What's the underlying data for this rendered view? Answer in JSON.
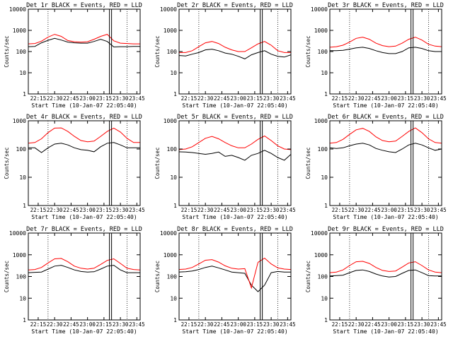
{
  "chart_data": [
    {
      "type": "line",
      "title": "Det 1r BLACK = Events, RED = LLD",
      "xlabel": "Start Time (10-Jan-07 22:05:40)",
      "ylabel": "Counts/sec",
      "y_scale": "log",
      "ylim": [
        1,
        10000
      ],
      "y_ticks": [
        "1",
        "10",
        "100",
        "1000",
        "10000"
      ],
      "x_ticks": [
        "22:15",
        "22:30",
        "22:45",
        "23:00",
        "23:15",
        "23:30",
        "23:45"
      ],
      "x": [
        "22:06",
        "22:12",
        "22:18",
        "22:24",
        "22:30",
        "22:36",
        "22:42",
        "22:48",
        "22:54",
        "23:00",
        "23:06",
        "23:12",
        "23:18",
        "23:24",
        "23:30",
        "23:36",
        "23:42",
        "23:48"
      ],
      "series": [
        {
          "name": "Events",
          "color": "#000000",
          "values": [
            170,
            175,
            260,
            340,
            420,
            350,
            280,
            260,
            250,
            250,
            300,
            380,
            300,
            165,
            170,
            170,
            175,
            175
          ]
        },
        {
          "name": "LLD",
          "color": "#ff0000",
          "values": [
            230,
            240,
            310,
            480,
            650,
            520,
            330,
            290,
            280,
            290,
            380,
            520,
            650,
            320,
            250,
            240,
            230,
            230
          ]
        }
      ]
    },
    {
      "type": "line",
      "title": "Det 2r BLACK = Events, RED = LLD",
      "xlabel": "Start Time (10-Jan-07 22:05:40)",
      "ylabel": "Counts/sec",
      "y_scale": "log",
      "ylim": [
        1,
        10000
      ],
      "y_ticks": [
        "1",
        "10",
        "100",
        "1000",
        "10000"
      ],
      "x_ticks": [
        "22:15",
        "22:30",
        "22:45",
        "23:00",
        "23:15",
        "23:30",
        "23:45"
      ],
      "x": [
        "22:06",
        "22:12",
        "22:18",
        "22:24",
        "22:30",
        "22:36",
        "22:42",
        "22:48",
        "22:54",
        "23:00",
        "23:06",
        "23:12",
        "23:18",
        "23:24",
        "23:30",
        "23:36",
        "23:42",
        "23:48"
      ],
      "series": [
        {
          "name": "Events",
          "color": "#000000",
          "values": [
            65,
            62,
            75,
            90,
            120,
            130,
            110,
            85,
            75,
            60,
            45,
            70,
            90,
            110,
            75,
            60,
            55,
            70
          ]
        },
        {
          "name": "LLD",
          "color": "#ff0000",
          "values": [
            90,
            90,
            110,
            170,
            260,
            300,
            240,
            160,
            120,
            100,
            100,
            150,
            230,
            300,
            200,
            110,
            90,
            90
          ]
        }
      ]
    },
    {
      "type": "line",
      "title": "Det 3r BLACK = Events, RED = LLD",
      "xlabel": "Start Time (10-Jan-07 22:05:40)",
      "ylabel": "Counts/sec",
      "y_scale": "log",
      "ylim": [
        1,
        10000
      ],
      "y_ticks": [
        "1",
        "10",
        "100",
        "1000",
        "10000"
      ],
      "x_ticks": [
        "22:15",
        "22:30",
        "22:45",
        "23:00",
        "23:15",
        "23:30",
        "23:45"
      ],
      "x": [
        "22:06",
        "22:12",
        "22:18",
        "22:24",
        "22:30",
        "22:36",
        "22:42",
        "22:48",
        "22:54",
        "23:00",
        "23:06",
        "23:12",
        "23:18",
        "23:24",
        "23:30",
        "23:36",
        "23:42",
        "23:48"
      ],
      "series": [
        {
          "name": "Events",
          "color": "#000000",
          "values": [
            110,
            110,
            115,
            130,
            150,
            160,
            140,
            110,
            90,
            80,
            80,
            100,
            150,
            160,
            140,
            110,
            100,
            100
          ]
        },
        {
          "name": "LLD",
          "color": "#ff0000",
          "values": [
            160,
            170,
            200,
            280,
            420,
            480,
            380,
            250,
            190,
            170,
            180,
            250,
            380,
            480,
            350,
            220,
            180,
            170
          ]
        }
      ]
    },
    {
      "type": "line",
      "title": "Det 4r BLACK = Events, RED = LLD",
      "xlabel": "Start Time (10-Jan-07 22:05:40)",
      "ylabel": "Counts/sec",
      "y_scale": "log",
      "ylim": [
        1,
        1000
      ],
      "y_ticks": [
        "1",
        "10",
        "100",
        "1000"
      ],
      "x_ticks": [
        "22:15",
        "22:30",
        "22:45",
        "23:00",
        "23:15",
        "23:30",
        "23:45"
      ],
      "x": [
        "22:06",
        "22:12",
        "22:18",
        "22:24",
        "22:30",
        "22:36",
        "22:42",
        "22:48",
        "22:54",
        "23:00",
        "23:06",
        "23:12",
        "23:18",
        "23:24",
        "23:30",
        "23:36",
        "23:42",
        "23:48"
      ],
      "series": [
        {
          "name": "Events",
          "color": "#000000",
          "values": [
            110,
            110,
            75,
            110,
            150,
            160,
            140,
            110,
            95,
            90,
            80,
            120,
            160,
            170,
            140,
            110,
            110,
            110
          ]
        },
        {
          "name": "LLD",
          "color": "#ff0000",
          "values": [
            160,
            170,
            230,
            380,
            550,
            560,
            420,
            280,
            200,
            180,
            190,
            280,
            420,
            550,
            400,
            240,
            170,
            170
          ]
        }
      ]
    },
    {
      "type": "line",
      "title": "Det 5r BLACK = Events, RED = LLD",
      "xlabel": "Start Time (10-Jan-07 22:05:40)",
      "ylabel": "Counts/sec",
      "y_scale": "log",
      "ylim": [
        1,
        1000
      ],
      "y_ticks": [
        "1",
        "10",
        "100",
        "1000"
      ],
      "x_ticks": [
        "22:15",
        "22:30",
        "22:45",
        "23:00",
        "23:15",
        "23:30",
        "23:45"
      ],
      "x": [
        "22:06",
        "22:12",
        "22:18",
        "22:24",
        "22:30",
        "22:36",
        "22:42",
        "22:48",
        "22:54",
        "23:00",
        "23:06",
        "23:12",
        "23:18",
        "23:24",
        "23:30",
        "23:36",
        "23:42",
        "23:48"
      ],
      "series": [
        {
          "name": "Events",
          "color": "#000000",
          "values": [
            80,
            78,
            75,
            70,
            65,
            70,
            78,
            55,
            60,
            50,
            40,
            60,
            70,
            90,
            70,
            50,
            40,
            65
          ]
        },
        {
          "name": "LLD",
          "color": "#ff0000",
          "values": [
            95,
            100,
            120,
            170,
            240,
            280,
            230,
            170,
            130,
            110,
            110,
            150,
            220,
            290,
            200,
            130,
            100,
            95
          ]
        }
      ]
    },
    {
      "type": "line",
      "title": "Det 6r BLACK = Events, RED = LLD",
      "xlabel": "Start Time (10-Jan-07 22:05:40)",
      "ylabel": "Counts/sec",
      "y_scale": "log",
      "ylim": [
        1,
        1000
      ],
      "y_ticks": [
        "1",
        "10",
        "100",
        "1000"
      ],
      "x_ticks": [
        "22:15",
        "22:30",
        "22:45",
        "23:00",
        "23:15",
        "23:30",
        "23:45"
      ],
      "x": [
        "22:06",
        "22:12",
        "22:18",
        "22:24",
        "22:30",
        "22:36",
        "22:42",
        "22:48",
        "22:54",
        "23:00",
        "23:06",
        "23:12",
        "23:18",
        "23:24",
        "23:30",
        "23:36",
        "23:42",
        "23:48"
      ],
      "series": [
        {
          "name": "Events",
          "color": "#000000",
          "values": [
            110,
            105,
            110,
            130,
            150,
            160,
            140,
            105,
            90,
            80,
            75,
            100,
            140,
            160,
            140,
            110,
            90,
            100
          ]
        },
        {
          "name": "LLD",
          "color": "#ff0000",
          "values": [
            160,
            170,
            220,
            330,
            480,
            540,
            420,
            270,
            200,
            180,
            190,
            280,
            420,
            560,
            380,
            230,
            170,
            160
          ]
        }
      ]
    },
    {
      "type": "line",
      "title": "Det 7r BLACK = Events, RED = LLD",
      "xlabel": "Start Time (10-Jan-07 22:05:40)",
      "ylabel": "Counts/sec",
      "y_scale": "log",
      "ylim": [
        1,
        10000
      ],
      "y_ticks": [
        "1",
        "10",
        "100",
        "1000",
        "10000"
      ],
      "x_ticks": [
        "22:15",
        "22:30",
        "22:45",
        "23:00",
        "23:15",
        "23:30",
        "23:45"
      ],
      "x": [
        "22:06",
        "22:12",
        "22:18",
        "22:24",
        "22:30",
        "22:36",
        "22:42",
        "22:48",
        "22:54",
        "23:00",
        "23:06",
        "23:12",
        "23:18",
        "23:24",
        "23:30",
        "23:36",
        "23:42",
        "23:48"
      ],
      "series": [
        {
          "name": "Events",
          "color": "#000000",
          "values": [
            150,
            155,
            160,
            220,
            300,
            330,
            260,
            200,
            170,
            160,
            165,
            220,
            300,
            330,
            200,
            150,
            150,
            150
          ]
        },
        {
          "name": "LLD",
          "color": "#ff0000",
          "values": [
            200,
            210,
            260,
            420,
            650,
            680,
            480,
            300,
            240,
            220,
            240,
            360,
            550,
            650,
            400,
            240,
            210,
            200
          ]
        }
      ]
    },
    {
      "type": "line",
      "title": "Det 8r BLACK = Events, RED = LLD",
      "xlabel": "Start Time (10-Jan-07 22:05:40)",
      "ylabel": "Counts/sec",
      "y_scale": "log",
      "ylim": [
        1,
        10000
      ],
      "y_ticks": [
        "1",
        "10",
        "100",
        "1000",
        "10000"
      ],
      "x_ticks": [
        "22:15",
        "22:30",
        "22:45",
        "23:00",
        "23:15",
        "23:30",
        "23:45"
      ],
      "x": [
        "22:06",
        "22:12",
        "22:18",
        "22:24",
        "22:30",
        "22:36",
        "22:42",
        "22:48",
        "22:54",
        "23:00",
        "23:06",
        "23:12",
        "23:18",
        "23:24",
        "23:30",
        "23:36",
        "23:42",
        "23:48"
      ],
      "series": [
        {
          "name": "Events",
          "color": "#000000",
          "values": [
            160,
            165,
            180,
            210,
            260,
            300,
            250,
            200,
            160,
            150,
            140,
            40,
            20,
            40,
            150,
            170,
            160,
            160
          ]
        },
        {
          "name": "LLD",
          "color": "#ff0000",
          "values": [
            210,
            220,
            260,
            380,
            560,
            600,
            460,
            310,
            240,
            220,
            230,
            30,
            450,
            700,
            380,
            250,
            220,
            210
          ]
        }
      ]
    },
    {
      "type": "line",
      "title": "Det 9r BLACK = Events, RED = LLD",
      "xlabel": "Start Time (10-Jan-07 22:05:40)",
      "ylabel": "Counts/sec",
      "y_scale": "log",
      "ylim": [
        1,
        10000
      ],
      "y_ticks": [
        "1",
        "10",
        "100",
        "1000",
        "10000"
      ],
      "x_ticks": [
        "22:15",
        "22:30",
        "22:45",
        "23:00",
        "23:15",
        "23:30",
        "23:45"
      ],
      "x": [
        "22:06",
        "22:12",
        "22:18",
        "22:24",
        "22:30",
        "22:36",
        "22:42",
        "22:48",
        "22:54",
        "23:00",
        "23:06",
        "23:12",
        "23:18",
        "23:24",
        "23:30",
        "23:36",
        "23:42",
        "23:48"
      ],
      "series": [
        {
          "name": "Events",
          "color": "#000000",
          "values": [
            105,
            110,
            115,
            150,
            190,
            200,
            170,
            130,
            105,
            95,
            100,
            140,
            190,
            200,
            150,
            110,
            105,
            105
          ]
        },
        {
          "name": "LLD",
          "color": "#ff0000",
          "values": [
            150,
            160,
            200,
            320,
            480,
            500,
            400,
            260,
            190,
            170,
            180,
            270,
            420,
            480,
            320,
            200,
            160,
            150
          ]
        }
      ]
    }
  ]
}
